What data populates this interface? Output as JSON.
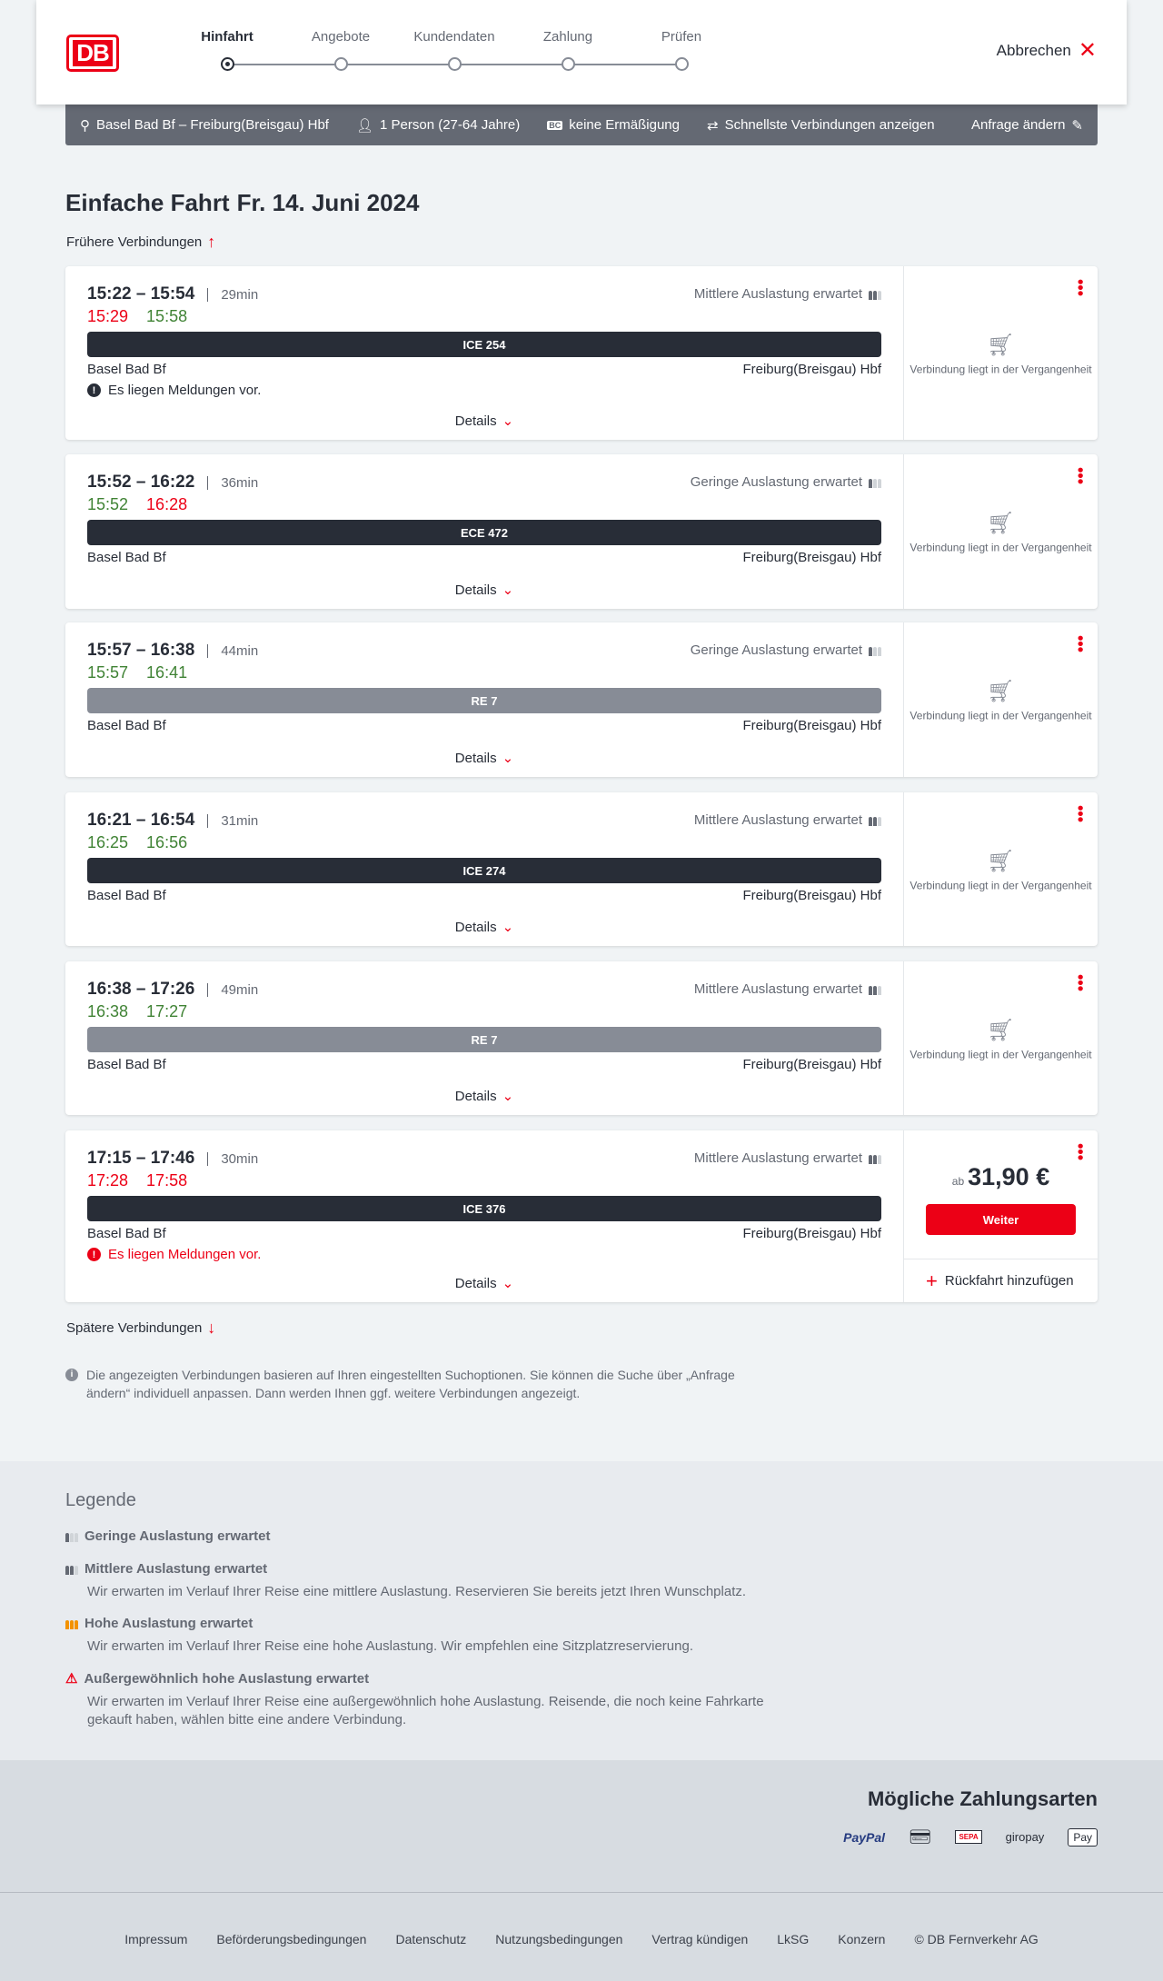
{
  "header": {
    "logo": "DB",
    "steps": [
      "Hinfahrt",
      "Angebote",
      "Kundendaten",
      "Zahlung",
      "Prüfen"
    ],
    "active_step": 0,
    "cancel": "Abbrechen"
  },
  "search": {
    "route": "Basel Bad Bf – Freiburg(Breisgau) Hbf",
    "passengers": "1 Person (27-64 Jahre)",
    "discount": "keine Ermäßigung",
    "fastest": "Schnellste Verbindungen anzeigen",
    "change": "Anfrage ändern"
  },
  "main": {
    "title": "Einfache Fahrt",
    "date": "Fr. 14. Juni 2024",
    "earlier": "Frühere Verbindungen",
    "later": "Spätere Verbindungen",
    "info": "Die angezeigten Verbindungen basieren auf Ihren eingestellten Suchoptionen. Sie können die Suche über „Anfrage ändern“ individuell anpassen. Dann werden Ihnen ggf. weitere Verbindungen angezeigt."
  },
  "labels": {
    "details": "Details",
    "past": "Verbindung liegt in der Vergangenheit",
    "ab": "ab",
    "weiter": "Weiter",
    "return": "Rückfahrt hinzufügen"
  },
  "connections": [
    {
      "times": "15:22 – 15:54",
      "duration": "29min",
      "occupancy": "Mittlere Auslastung erwartet",
      "occ_level": 2,
      "dep_rt": "15:29",
      "dep_color": "red",
      "arr_rt": "15:58",
      "arr_color": "green",
      "train": "ICE 254",
      "train_type": "ice",
      "from": "Basel Bad Bf",
      "to": "Freiburg(Breisgau) Hbf",
      "message": "Es liegen Meldungen vor.",
      "message_color": "dark",
      "past": true
    },
    {
      "times": "15:52 – 16:22",
      "duration": "36min",
      "occupancy": "Geringe Auslastung erwartet",
      "occ_level": 1,
      "dep_rt": "15:52",
      "dep_color": "green",
      "arr_rt": "16:28",
      "arr_color": "red",
      "train": "ECE 472",
      "train_type": "ice",
      "from": "Basel Bad Bf",
      "to": "Freiburg(Breisgau) Hbf",
      "past": true
    },
    {
      "times": "15:57 – 16:38",
      "duration": "44min",
      "occupancy": "Geringe Auslastung erwartet",
      "occ_level": 1,
      "dep_rt": "15:57",
      "dep_color": "green",
      "arr_rt": "16:41",
      "arr_color": "green",
      "train": "RE 7",
      "train_type": "re",
      "from": "Basel Bad Bf",
      "to": "Freiburg(Breisgau) Hbf",
      "past": true
    },
    {
      "times": "16:21 – 16:54",
      "duration": "31min",
      "occupancy": "Mittlere Auslastung erwartet",
      "occ_level": 2,
      "dep_rt": "16:25",
      "dep_color": "green",
      "arr_rt": "16:56",
      "arr_color": "green",
      "train": "ICE 274",
      "train_type": "ice",
      "from": "Basel Bad Bf",
      "to": "Freiburg(Breisgau) Hbf",
      "past": true
    },
    {
      "times": "16:38 – 17:26",
      "duration": "49min",
      "occupancy": "Mittlere Auslastung erwartet",
      "occ_level": 2,
      "dep_rt": "16:38",
      "dep_color": "green",
      "arr_rt": "17:27",
      "arr_color": "green",
      "train": "RE 7",
      "train_type": "re",
      "from": "Basel Bad Bf",
      "to": "Freiburg(Breisgau) Hbf",
      "past": true
    },
    {
      "times": "17:15 – 17:46",
      "duration": "30min",
      "occupancy": "Mittlere Auslastung erwartet",
      "occ_level": 2,
      "dep_rt": "17:28",
      "dep_color": "red",
      "arr_rt": "17:58",
      "arr_color": "red",
      "train": "ICE 376",
      "train_type": "ice",
      "from": "Basel Bad Bf",
      "to": "Freiburg(Breisgau) Hbf",
      "message": "Es liegen Meldungen vor.",
      "message_color": "red",
      "past": false,
      "price": "31,90 €"
    }
  ],
  "legend": {
    "title": "Legende",
    "items": [
      {
        "title": "Geringe Auslastung erwartet",
        "text": ""
      },
      {
        "title": "Mittlere Auslastung erwartet",
        "text": "Wir erwarten im Verlauf Ihrer Reise eine mittlere Auslastung. Reservieren Sie bereits jetzt Ihren Wunschplatz."
      },
      {
        "title": "Hohe Auslastung erwartet",
        "text": "Wir erwarten im Verlauf Ihrer Reise eine hohe Auslastung. Wir empfehlen eine Sitzplatzreservierung."
      },
      {
        "title": "Außergewöhnlich hohe Auslastung erwartet",
        "text": "Wir erwarten im Verlauf Ihrer Reise eine außergewöhnlich hohe Auslastung. Reisende, die noch keine Fahrkarte gekauft haben, wählen bitte eine andere Verbindung."
      }
    ]
  },
  "payment": {
    "title": "Mögliche Zahlungsarten",
    "methods": [
      "PayPal",
      "Kreditkarte",
      "SEPA",
      "giropay",
      "Pay"
    ]
  },
  "footer": {
    "links": [
      "Impressum",
      "Beförderungsbedingungen",
      "Datenschutz",
      "Nutzungsbedingungen",
      "Vertrag kündigen",
      "LkSG",
      "Konzern",
      "© DB Fernverkehr AG"
    ]
  },
  "colors": {
    "accent": "#ec0016",
    "on_time": "#408335",
    "train_bar": "#282d37",
    "regional_bar": "#878c96",
    "high_occupancy": "#f39200"
  }
}
